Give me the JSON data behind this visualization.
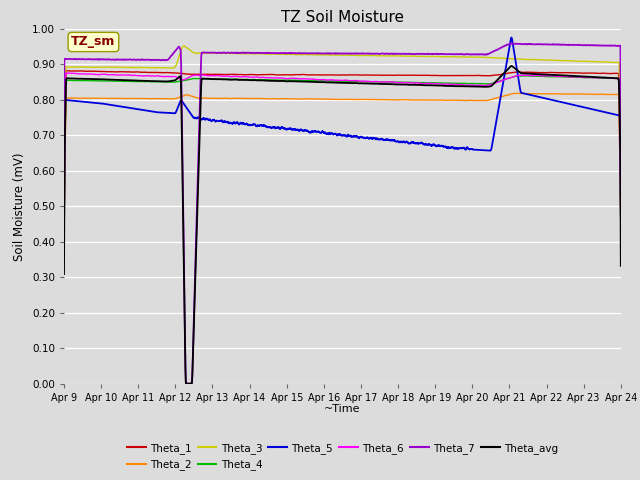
{
  "title": "TZ Soil Moisture",
  "xlabel": "~Time",
  "ylabel": "Soil Moisture (mV)",
  "ylim": [
    0.0,
    1.0
  ],
  "yticks": [
    0.0,
    0.1,
    0.2,
    0.3,
    0.4,
    0.5,
    0.6,
    0.7,
    0.8,
    0.9,
    1.0
  ],
  "ytick_labels": [
    "0.00",
    "0.10",
    "0.20",
    "0.30",
    "0.40",
    "0.50",
    "0.60",
    "0.70",
    "0.80",
    "0.90",
    "1.00"
  ],
  "xtick_labels": [
    "Apr 9",
    "Apr 10",
    "Apr 11",
    "Apr 12",
    "Apr 13",
    "Apr 14",
    "Apr 15",
    "Apr 16",
    "Apr 17",
    "Apr 18",
    "Apr 19",
    "Apr 20",
    "Apr 21",
    "Apr 22",
    "Apr 23",
    "Apr 24"
  ],
  "bg_color": "#dcdcdc",
  "annotation_text": "TZ_sm",
  "annotation_bg": "#ffffcc",
  "annotation_fg": "#880000",
  "series_colors": {
    "Theta_1": "#cc0000",
    "Theta_2": "#ff8800",
    "Theta_3": "#cccc00",
    "Theta_4": "#00bb00",
    "Theta_5": "#0000dd",
    "Theta_6": "#ff00ff",
    "Theta_7": "#9900cc",
    "Theta_avg": "#000000"
  }
}
